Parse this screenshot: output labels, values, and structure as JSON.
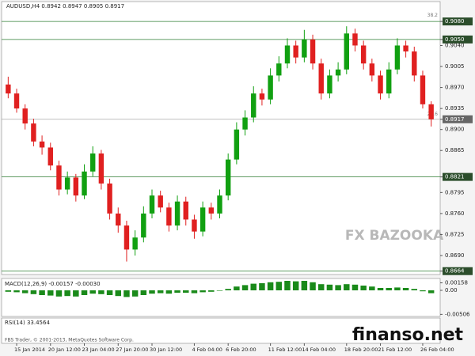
{
  "chart_data": {
    "type": "candlestick",
    "title": "AUDUSD,H4 0.8942 0.8947 0.8905 0.8917",
    "categories": [
      null,
      "15 Jan 2014",
      null,
      null,
      null,
      "20 Jan 12:00",
      null,
      null,
      null,
      "23 Jan 04:00",
      null,
      null,
      null,
      "27 Jan 20:00",
      null,
      null,
      null,
      "30 Jan 12:00",
      null,
      null,
      null,
      null,
      "4 Feb 04:00",
      null,
      null,
      null,
      "6 Feb 20:00",
      null,
      null,
      null,
      null,
      "11 Feb 12:00",
      null,
      null,
      null,
      "14 Feb 04:00",
      null,
      null,
      null,
      null,
      "18 Feb 20:00",
      null,
      null,
      null,
      "21 Feb 12:00",
      null,
      null,
      null,
      null,
      "26 Feb 04:00",
      null
    ],
    "open": [
      0.8975,
      0.896,
      0.8935,
      0.891,
      0.888,
      0.887,
      0.884,
      0.88,
      0.882,
      0.879,
      0.883,
      0.886,
      0.881,
      0.876,
      0.874,
      0.87,
      0.872,
      0.876,
      0.879,
      0.877,
      0.874,
      0.878,
      0.875,
      0.873,
      0.877,
      0.876,
      0.879,
      0.885,
      0.89,
      0.892,
      0.896,
      0.895,
      0.899,
      0.901,
      0.904,
      0.902,
      0.905,
      0.901,
      0.896,
      0.899,
      0.9,
      0.906,
      0.904,
      0.901,
      0.899,
      0.896,
      0.9,
      0.904,
      0.903,
      0.899,
      0.8942
    ],
    "high": [
      0.8988,
      0.8968,
      0.8942,
      0.8918,
      0.889,
      0.8878,
      0.8848,
      0.883,
      0.8826,
      0.8842,
      0.8872,
      0.8866,
      0.8818,
      0.877,
      0.8748,
      0.8732,
      0.8772,
      0.88,
      0.8798,
      0.8778,
      0.879,
      0.8788,
      0.8758,
      0.878,
      0.8778,
      0.88,
      0.886,
      0.8912,
      0.8932,
      0.8972,
      0.8968,
      0.9002,
      0.9022,
      0.9052,
      0.9048,
      0.9066,
      0.9058,
      0.9018,
      0.9,
      0.9012,
      0.9072,
      0.9068,
      0.9048,
      0.9018,
      0.8998,
      0.9012,
      0.9052,
      0.9048,
      0.9038,
      0.8998,
      0.8947
    ],
    "low": [
      0.8952,
      0.8928,
      0.89,
      0.8872,
      0.8858,
      0.8832,
      0.879,
      0.8792,
      0.878,
      0.8784,
      0.8822,
      0.88,
      0.875,
      0.8728,
      0.868,
      0.869,
      0.8712,
      0.8752,
      0.8762,
      0.873,
      0.8732,
      0.874,
      0.8718,
      0.8722,
      0.875,
      0.8752,
      0.8782,
      0.8842,
      0.889,
      0.8912,
      0.894,
      0.8942,
      0.898,
      0.9002,
      0.901,
      0.9012,
      0.9,
      0.895,
      0.8952,
      0.898,
      0.8992,
      0.903,
      0.9,
      0.898,
      0.895,
      0.8952,
      0.8992,
      0.902,
      0.898,
      0.8935,
      0.8905
    ],
    "close": [
      0.896,
      0.8935,
      0.891,
      0.888,
      0.887,
      0.884,
      0.88,
      0.882,
      0.879,
      0.883,
      0.886,
      0.881,
      0.876,
      0.874,
      0.87,
      0.872,
      0.876,
      0.879,
      0.877,
      0.874,
      0.878,
      0.875,
      0.873,
      0.877,
      0.876,
      0.879,
      0.885,
      0.89,
      0.892,
      0.896,
      0.895,
      0.899,
      0.901,
      0.904,
      0.902,
      0.905,
      0.901,
      0.896,
      0.899,
      0.9,
      0.906,
      0.904,
      0.901,
      0.899,
      0.896,
      0.9,
      0.904,
      0.903,
      0.899,
      0.8942,
      0.8917
    ],
    "up_color": "#11a011",
    "down_color": "#e02020",
    "ylim": [
      0.8661,
      0.9096
    ],
    "yticks": [
      {
        "value": 0.908,
        "label": "0.9080"
      },
      {
        "value": 0.905,
        "label": "0.9050"
      },
      {
        "value": 0.904,
        "label": "0.9040"
      },
      {
        "value": 0.9005,
        "label": "0.9005"
      },
      {
        "value": 0.897,
        "label": "0.8970"
      },
      {
        "value": 0.8935,
        "label": "0.8935"
      },
      {
        "value": 0.8917,
        "label": "0.8917"
      },
      {
        "value": 0.89,
        "label": "0.8900"
      },
      {
        "value": 0.8865,
        "label": "0.8865"
      },
      {
        "value": 0.8821,
        "label": "0.8821"
      },
      {
        "value": 0.8795,
        "label": "0.8795"
      },
      {
        "value": 0.876,
        "label": "0.8760"
      },
      {
        "value": 0.8725,
        "label": "0.8725"
      },
      {
        "value": 0.869,
        "label": "0.8690"
      },
      {
        "value": 0.8664,
        "label": "0.8664"
      }
    ],
    "levels": [
      0.908,
      0.905,
      0.8821,
      0.8664
    ],
    "level_color": "#2e7d32",
    "current_price": 0.8917,
    "fib_labels": [
      {
        "value": 0.909,
        "label": "38.2"
      },
      {
        "value": 0.8925,
        "label": "23.6"
      }
    ],
    "macd": {
      "title": "MACD(12,26,9) -0.00157 -0.00030",
      "color": "#1a8a1a",
      "values": [
        -0.0003,
        -0.0004,
        -0.0006,
        -0.0008,
        -0.001,
        -0.0011,
        -0.0013,
        -0.0012,
        -0.0013,
        -0.001,
        -0.0007,
        -0.0008,
        -0.001,
        -0.0012,
        -0.0014,
        -0.0013,
        -0.001,
        -0.0007,
        -0.0006,
        -0.0007,
        -0.0005,
        -0.0005,
        -0.0006,
        -0.0004,
        -0.0003,
        -0.0001,
        0.0003,
        0.0008,
        0.0011,
        0.0014,
        0.0015,
        0.0017,
        0.0018,
        0.002,
        0.0019,
        0.002,
        0.0017,
        0.0013,
        0.0012,
        0.0011,
        0.0013,
        0.0012,
        0.001,
        0.0008,
        0.0005,
        0.0005,
        0.0006,
        0.0005,
        0.0003,
        -0.0002,
        -0.0006
      ],
      "ylim": [
        -0.0055,
        0.0025
      ],
      "yticks": [
        0.00158,
        {
          "value": 0,
          "label": "0.00"
        },
        -0.00506
      ]
    },
    "rsi": {
      "title": "RSI(14) 33.4564"
    }
  },
  "watermarks": [
    "FX BAZOOKA",
    "finanso.net",
    "FBS Trader, © 2001-2013, MetaQuotes Software Corp."
  ]
}
